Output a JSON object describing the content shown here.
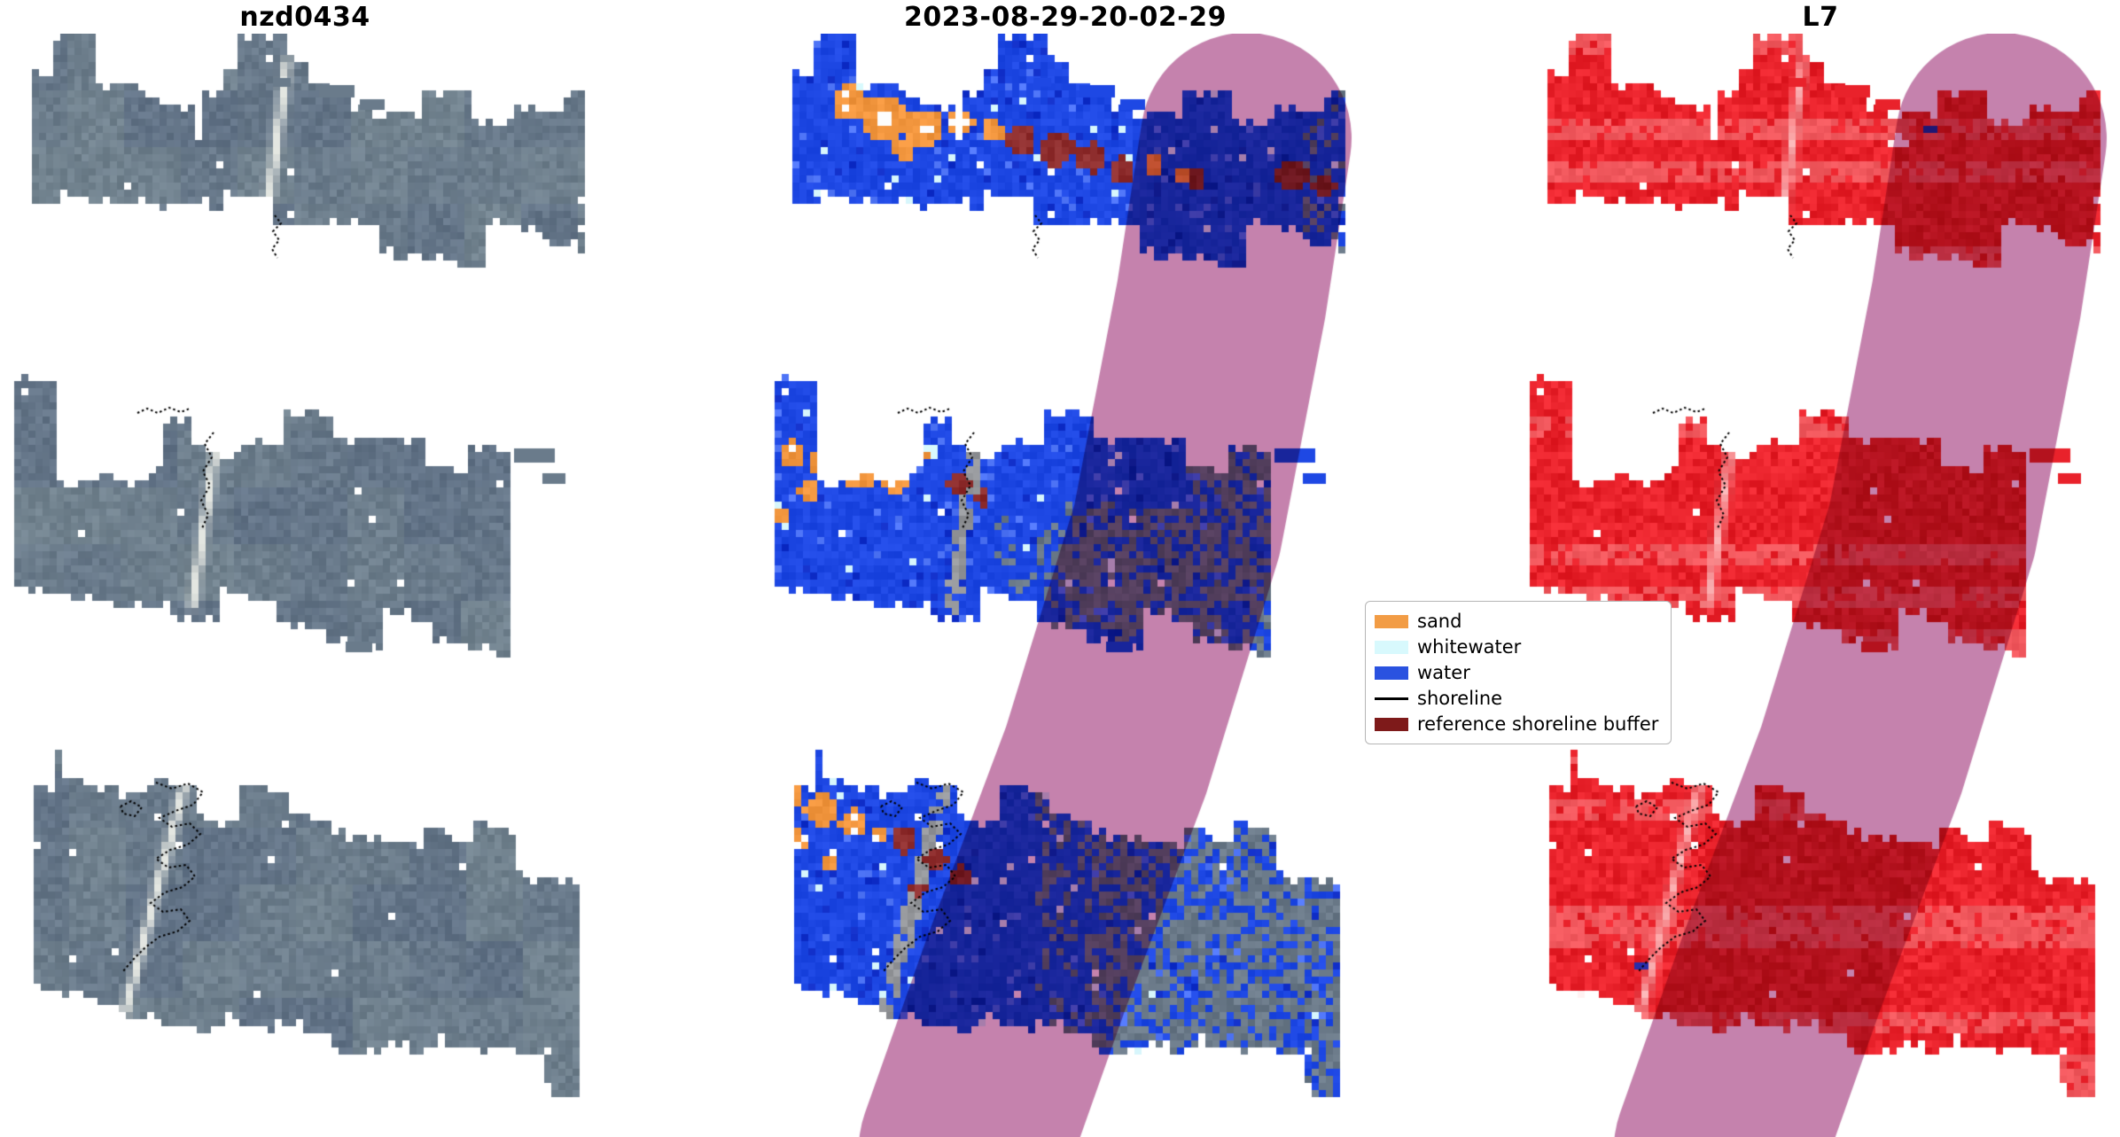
{
  "panels": [
    {
      "title": "nzd0434",
      "kind": "rgb"
    },
    {
      "title": "2023-08-29-20-02-29",
      "kind": "classification"
    },
    {
      "title": "L7",
      "kind": "l7"
    }
  ],
  "legend": {
    "items": [
      {
        "label": "sand",
        "color": "#F29C45",
        "kind": "patch"
      },
      {
        "label": "whitewater",
        "color": "#D8F9FD",
        "kind": "patch"
      },
      {
        "label": "water",
        "color": "#2A52E0",
        "kind": "patch"
      },
      {
        "label": "shoreline",
        "color": "#000000",
        "kind": "line"
      },
      {
        "label": "reference shoreline buffer",
        "color": "#7E1A1A",
        "kind": "patch"
      }
    ]
  },
  "render": {
    "background": "#FFFFFF",
    "rgb_base": "#6A7B8B",
    "l7_base": "#E9222B",
    "water": "#1E48E4",
    "sand": "#F2963E",
    "whitewater": "#D8F9FD",
    "reference_buffer_patch": "#8E2D2D",
    "unclassified_gray": "#6A7988",
    "buffer_overlay": "#C582AD",
    "shoreline": "#000000"
  },
  "chart_data": [
    {
      "type": "heatmap",
      "title": "nzd0434",
      "content": "RGB satellite image strips (three tilted swaths) of coastal site nzd0434 with black dotted detected shoreline overlays"
    },
    {
      "type": "heatmap",
      "title": "2023-08-29-20-02-29",
      "content": "Pixel classification of the same three swaths with a translucent reference shoreline buffer band crossing the scene",
      "classes": [
        "sand",
        "whitewater",
        "water",
        "shoreline",
        "reference shoreline buffer"
      ],
      "legend_position": "center right"
    },
    {
      "type": "heatmap",
      "title": "L7",
      "content": "Landsat 7 red-band rendering of the same swaths with the translucent reference shoreline buffer band and dotted shorelines"
    }
  ]
}
